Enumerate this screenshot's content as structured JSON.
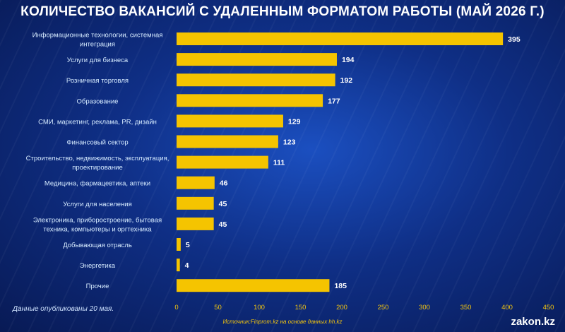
{
  "chart_data": {
    "type": "bar",
    "orientation": "horizontal",
    "title": "КОЛИЧЕСТВО ВАКАНСИЙ С УДАЛЕННЫМ ФОРМАТОМ РАБОТЫ (МАЙ 2026 Г.)",
    "categories": [
      "Информационные технологии, системная интеграция",
      "Услуги для бизнеса",
      "Розничная торговля",
      "Образование",
      "СМИ, маркетинг, реклама, PR, дизайн",
      "Финансовый сектор",
      "Строительство, недвижимость, эксплуатация, проектирование",
      "Медицина, фармацевтика, аптеки",
      "Услуги для населения",
      "Электроника, приборостроение, бытовая техника, компьютеры и оргтехника",
      "Добывающая отрасль",
      "Энергетика",
      "Прочие"
    ],
    "category_lines": [
      [
        "Информационные технологии, системная",
        "интеграция"
      ],
      [
        "Услуги для бизнеса"
      ],
      [
        "Розничная торговля"
      ],
      [
        "Образование"
      ],
      [
        "СМИ, маркетинг, реклама, PR, дизайн"
      ],
      [
        "Финансовый сектор"
      ],
      [
        "Строительство, недвижимость, эксплуатация,",
        "проектирование"
      ],
      [
        "Медицина, фармацевтика, аптеки"
      ],
      [
        "Услуги для населения"
      ],
      [
        "Электроника, приборостроение, бытовая",
        "техника, компьютеры и оргтехника"
      ],
      [
        "Добывающая отрасль"
      ],
      [
        "Энергетика"
      ],
      [
        "Прочие"
      ]
    ],
    "values": [
      395,
      194,
      192,
      177,
      129,
      123,
      111,
      46,
      45,
      45,
      5,
      4,
      185
    ],
    "xlim": [
      0,
      450
    ],
    "xticks": [
      0,
      50,
      100,
      150,
      200,
      250,
      300,
      350,
      400,
      450
    ],
    "grid": false,
    "legend": "none"
  },
  "colors": {
    "bar": "#f5c400",
    "value_label": "#ffffff",
    "category_label": "#d6ebff",
    "tick_label": "#f1c40f",
    "background": "#0f2f86"
  },
  "footnote": "Данные опубликованы 20 мая.",
  "source": "Источник:Finprom.kz на основе данных hh.kz",
  "brand": "zakon.kz"
}
